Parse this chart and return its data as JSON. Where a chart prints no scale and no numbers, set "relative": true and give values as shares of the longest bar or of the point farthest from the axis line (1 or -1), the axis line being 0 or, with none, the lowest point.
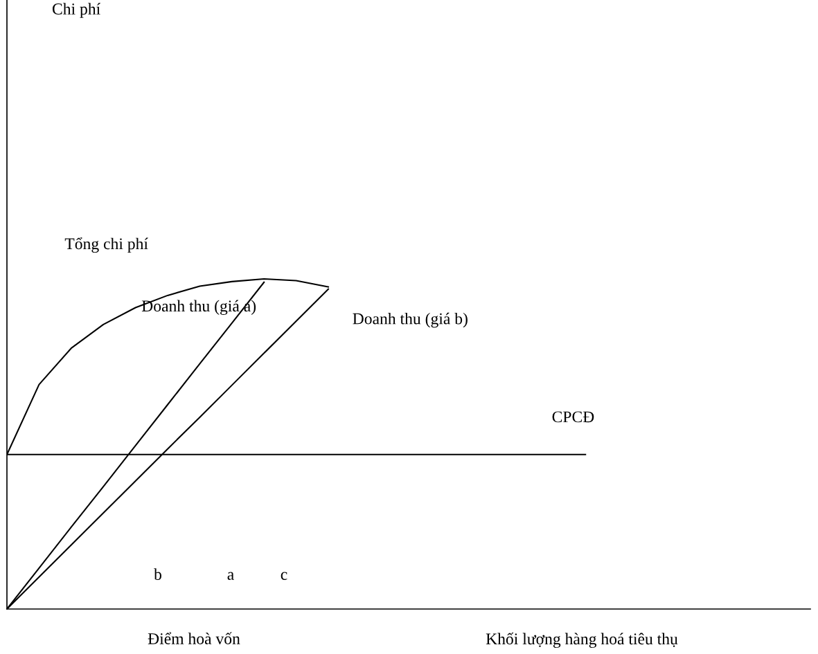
{
  "chart_data": {
    "type": "line",
    "relative": true,
    "xlabel": "Khối lượng hàng hoá tiêu thụ",
    "annotations": [
      "Điểm hoà vốn",
      "b",
      "a",
      "c",
      "Chi phí"
    ],
    "categories": [
      null,
      null,
      null,
      null,
      null,
      null,
      null,
      null,
      null,
      null,
      null,
      null,
      null,
      null,
      null,
      null,
      null,
      null,
      null,
      null,
      null
    ],
    "series": [
      {
        "name": "Tổng chi phí",
        "color": "#000000",
        "values": [
          0.468,
          0.68,
          0.79,
          0.862,
          0.913,
          0.95,
          0.978,
          0.992,
          1.0,
          0.995,
          0.976,
          null,
          null,
          null,
          null,
          null,
          null,
          null,
          null,
          null,
          null
        ]
      },
      {
        "name": "Doanh thu (giá a)",
        "color": "#000000",
        "values": [
          0,
          0.124,
          0.248,
          0.371,
          0.495,
          0.619,
          0.743,
          0.866,
          0.99,
          null,
          null,
          null,
          null,
          null,
          null,
          null,
          null,
          null,
          null,
          null,
          null
        ]
      },
      {
        "name": "Doanh thu (giá b)",
        "color": "#000000",
        "values": [
          0,
          0.097,
          0.194,
          0.291,
          0.388,
          0.485,
          0.581,
          0.678,
          0.775,
          0.872,
          0.969,
          null,
          null,
          null,
          null,
          null,
          null,
          null,
          null,
          null,
          null
        ]
      },
      {
        "name": "CPCĐ",
        "color": "#000000",
        "values": [
          0.468,
          0.468,
          0.468,
          0.468,
          0.468,
          0.468,
          0.468,
          0.468,
          0.468,
          0.468,
          0.468,
          0.468,
          0.468,
          0.468,
          0.468,
          0.468,
          0.468,
          0.468,
          0.468,
          null,
          null
        ]
      }
    ]
  }
}
